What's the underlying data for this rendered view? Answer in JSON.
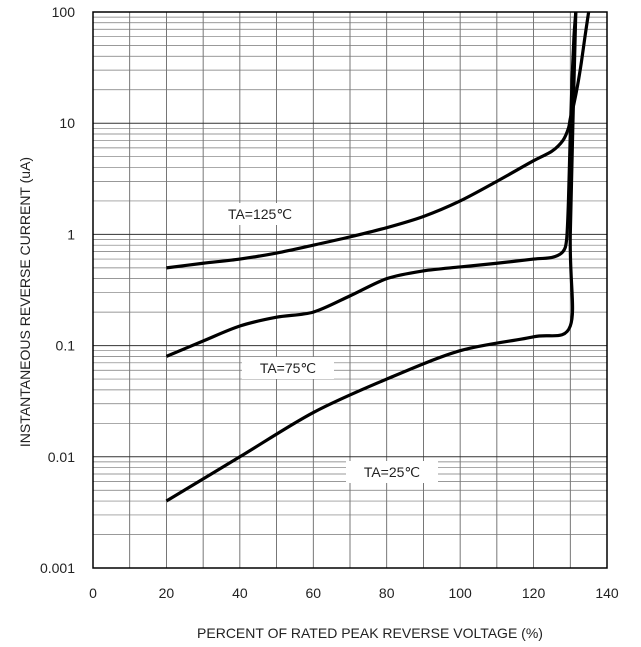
{
  "chart_data": {
    "type": "line",
    "title": "",
    "xlabel": "PERCENT OF RATED PEAK REVERSE VOLTAGE (%)",
    "ylabel": "INSTANTANEOUS REVERSE CURRENT (uA)",
    "xlim": [
      0,
      140
    ],
    "ylim": [
      0.001,
      100
    ],
    "yscale": "log",
    "grid": true,
    "x_ticks": [
      "0",
      "20",
      "40",
      "60",
      "80",
      "100",
      "120",
      "140"
    ],
    "y_ticks": [
      "0.001",
      "0.01",
      "0.1",
      "1",
      "10",
      "100"
    ],
    "line_color": "#000000",
    "series": [
      {
        "name": "TA=125℃",
        "x": [
          20,
          30,
          40,
          50,
          60,
          70,
          80,
          90,
          100,
          110,
          120,
          125,
          128,
          129.5,
          130,
          131,
          132,
          133,
          134,
          135
        ],
        "y": [
          0.5,
          0.55,
          0.6,
          0.68,
          0.8,
          0.95,
          1.15,
          1.45,
          2.0,
          3.0,
          4.6,
          5.6,
          7.0,
          9.0,
          11,
          15,
          22,
          35,
          60,
          100
        ]
      },
      {
        "name": "TA=75℃",
        "x": [
          20,
          30,
          40,
          50,
          60,
          70,
          80,
          90,
          100,
          110,
          120,
          125,
          128,
          129,
          129.5,
          130,
          130.5,
          131,
          131.5
        ],
        "y": [
          0.08,
          0.11,
          0.15,
          0.18,
          0.2,
          0.28,
          0.4,
          0.47,
          0.51,
          0.55,
          0.6,
          0.62,
          0.7,
          0.9,
          2.0,
          8,
          25,
          60,
          100
        ]
      },
      {
        "name": "TA=25℃",
        "x": [
          20,
          40,
          60,
          80,
          100,
          120,
          130,
          130,
          131.5
        ],
        "y": [
          0.004,
          0.01,
          0.025,
          0.05,
          0.09,
          0.12,
          0.15,
          1.0,
          100
        ]
      }
    ]
  }
}
